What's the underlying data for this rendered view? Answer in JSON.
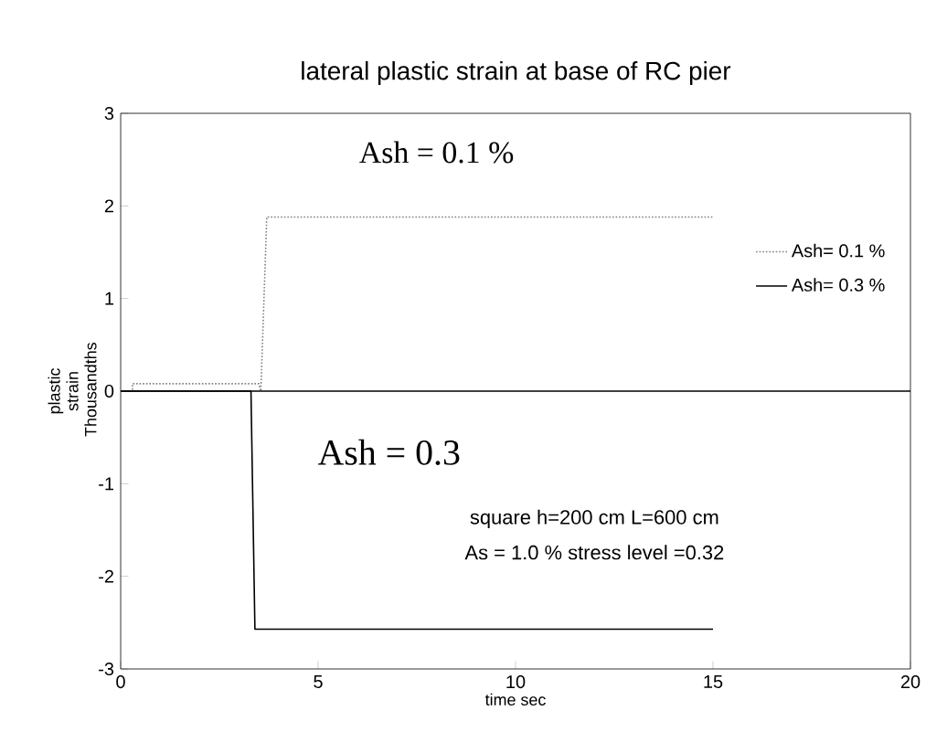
{
  "chart_data": {
    "type": "line",
    "title": "lateral plastic strain at base of RC pier",
    "xlabel": "time sec",
    "ylabel": "plastic strain Thousandths",
    "xlim": [
      0,
      20
    ],
    "ylim": [
      -3,
      3
    ],
    "xticks": [
      0,
      5,
      10,
      15,
      20
    ],
    "yticks": [
      -3,
      -2,
      -1,
      0,
      1,
      2,
      3
    ],
    "grid": false,
    "legend": "right",
    "marker": "none",
    "series": [
      {
        "name": "Ash= 0.1 %",
        "color": "#808080",
        "line_style": "dotted",
        "x": [
          0,
          0.3,
          0.3,
          3.5,
          3.55,
          3.7,
          15
        ],
        "values": [
          0,
          0,
          0.08,
          0.08,
          0,
          1.88,
          1.88
        ]
      },
      {
        "name": "Ash= 0.3 %",
        "color": "#000000",
        "line_style": "solid",
        "x": [
          0,
          3.3,
          3.4,
          15
        ],
        "values": [
          0,
          0,
          -2.57,
          -2.57
        ]
      }
    ],
    "ref_lines": [
      {
        "axis": "y",
        "value": 0,
        "color": "#000000"
      }
    ],
    "annotations": [
      "Ash = 0.1 %",
      "Ash = 0.3",
      "square  h=200 cm  L=600 cm",
      "As = 1.0 %  stress level =0.32"
    ]
  }
}
